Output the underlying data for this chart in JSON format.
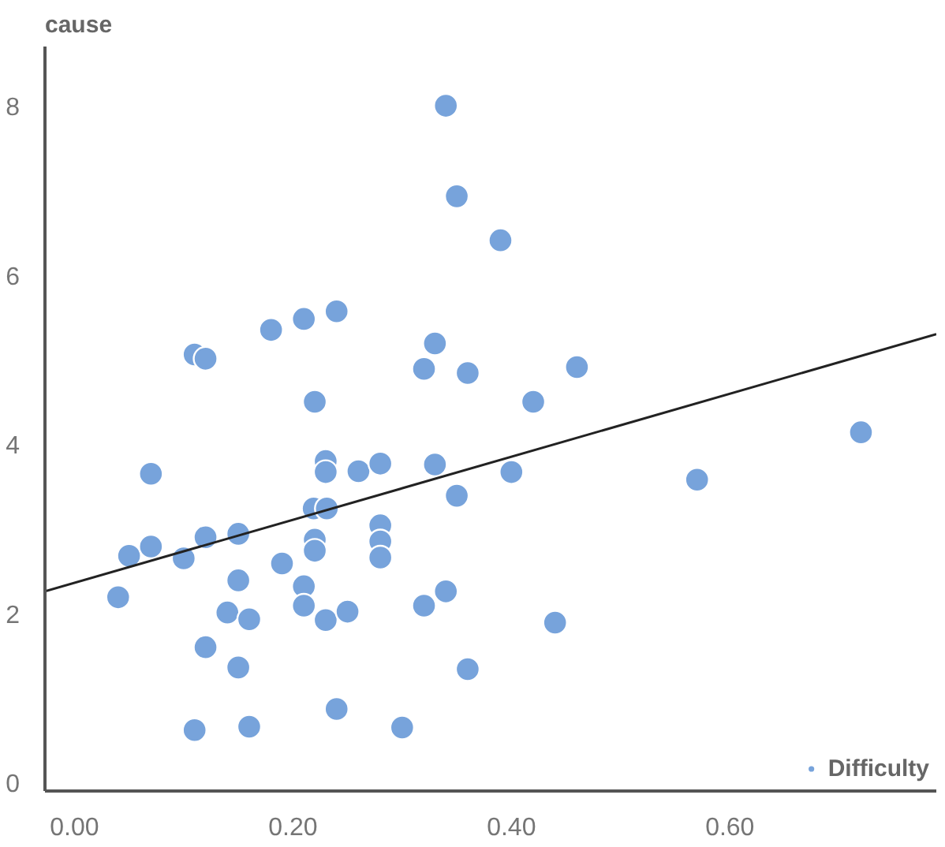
{
  "chart_data": {
    "type": "scatter",
    "ylabel": "cause",
    "xlim": [
      -0.027,
      0.789
    ],
    "ylim": [
      -0.1,
      8.7
    ],
    "xticks": [
      {
        "value": 0,
        "label": "0.00"
      },
      {
        "value": 0.2,
        "label": "0.20"
      },
      {
        "value": 0.4,
        "label": "0.40"
      },
      {
        "value": 0.6,
        "label": "0.60"
      }
    ],
    "yticks": [
      0,
      2,
      4,
      6,
      8
    ],
    "grid": false,
    "legend": "bottom right",
    "series": [
      {
        "name": "Difficulty",
        "color": "#77a3db",
        "marker": "circle",
        "x": [
          0.34,
          0.35,
          0.24,
          0.21,
          0.18,
          0.11,
          0.12,
          0.33,
          0.32,
          0.36,
          0.22,
          0.39,
          0.46,
          0.42,
          0.72,
          0.4,
          0.57,
          0.35,
          0.44,
          0.36,
          0.07,
          0.04,
          0.05,
          0.07,
          0.1,
          0.12,
          0.15,
          0.15,
          0.14,
          0.16,
          0.12,
          0.15,
          0.11,
          0.16,
          0.19,
          0.21,
          0.21,
          0.219,
          0.231,
          0.22,
          0.22,
          0.23,
          0.23,
          0.26,
          0.23,
          0.25,
          0.24,
          0.28,
          0.28,
          0.28,
          0.28,
          0.3,
          0.33,
          0.32,
          0.34
        ],
        "values": [
          8.0,
          6.93,
          5.57,
          5.48,
          5.35,
          5.06,
          5.01,
          5.19,
          4.89,
          4.84,
          4.5,
          6.41,
          4.91,
          4.5,
          4.14,
          3.67,
          3.58,
          3.39,
          1.89,
          1.34,
          3.65,
          2.19,
          2.68,
          2.79,
          2.65,
          2.9,
          2.94,
          2.39,
          2.01,
          1.93,
          1.6,
          1.36,
          0.62,
          0.66,
          2.59,
          2.32,
          2.09,
          3.24,
          3.24,
          2.87,
          2.74,
          3.8,
          3.67,
          3.68,
          1.92,
          2.02,
          0.87,
          3.77,
          3.04,
          2.85,
          2.66,
          0.65,
          3.76,
          2.09,
          2.26
        ]
      },
      {
        "type": "line",
        "color": "#222222",
        "x": [
          -0.027,
          0.789
        ],
        "values": [
          2.26,
          5.3
        ]
      }
    ]
  }
}
